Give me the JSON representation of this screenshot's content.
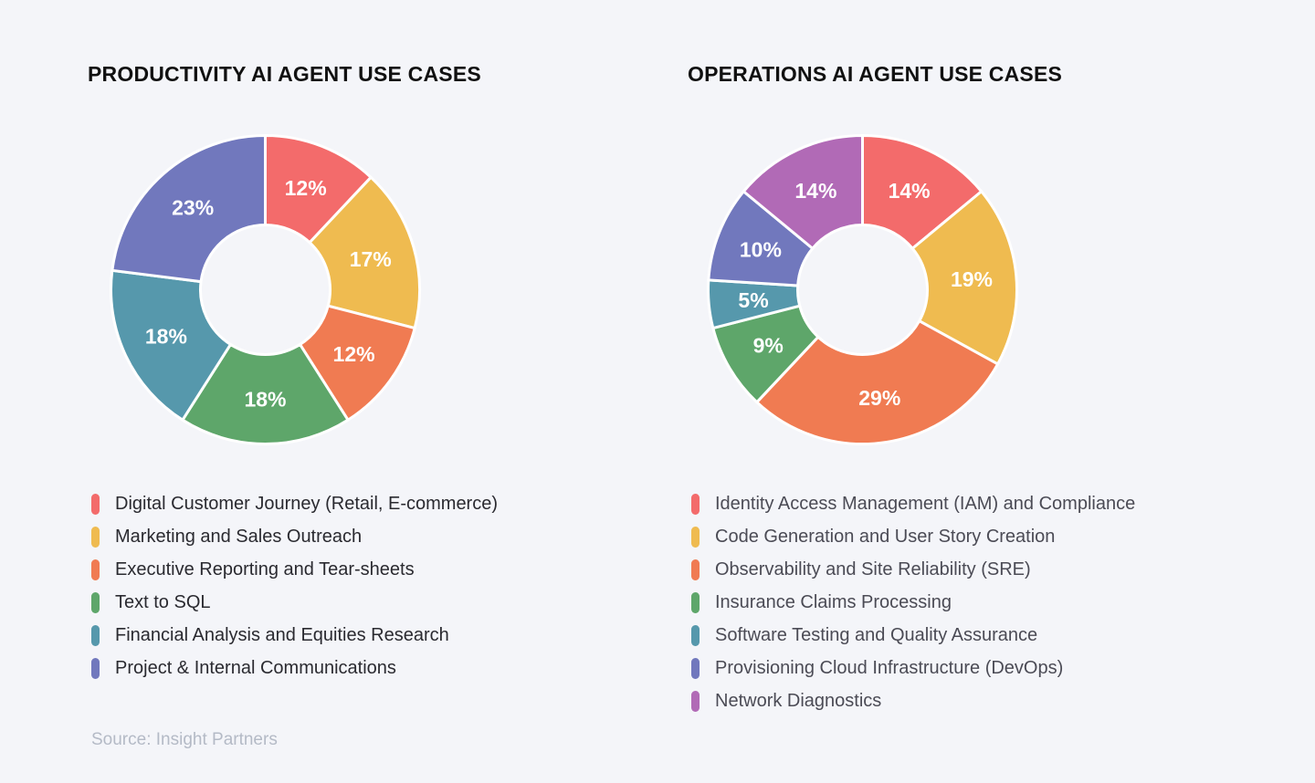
{
  "source": "Source: Insight Partners",
  "chart_data": [
    {
      "type": "pie",
      "title": "PRODUCTIVITY AI AGENT USE CASES",
      "categories": [
        "Digital Customer Journey (Retail, E-commerce)",
        "Marketing and Sales Outreach",
        "Executive Reporting and Tear-sheets",
        "Text to SQL",
        "Financial Analysis and Equities Research",
        "Project & Internal Communications"
      ],
      "values": [
        12,
        17,
        12,
        18,
        18,
        23
      ],
      "value_labels": [
        "12%",
        "17%",
        "12%",
        "18%",
        "18%",
        "23%"
      ],
      "colors": [
        "#f36b6b",
        "#efbb50",
        "#f07b52",
        "#5ea66a",
        "#5698ac",
        "#7178bd"
      ],
      "legend_position": "bottom"
    },
    {
      "type": "pie",
      "title": "OPERATIONS AI AGENT USE CASES",
      "categories": [
        "Identity Access Management (IAM) and Compliance",
        "Code Generation and User Story Creation",
        "Observability and Site Reliability (SRE)",
        "Insurance Claims Processing",
        "Software Testing and Quality Assurance",
        "Provisioning Cloud Infrastructure (DevOps)",
        "Network Diagnostics"
      ],
      "values": [
        14,
        19,
        29,
        9,
        5,
        10,
        14
      ],
      "value_labels": [
        "14%",
        "19%",
        "29%",
        "9%",
        "5%",
        "10%",
        "14%"
      ],
      "colors": [
        "#f36b6b",
        "#efbb50",
        "#f07b52",
        "#5ea66a",
        "#5698ac",
        "#7178bd",
        "#b16ab6"
      ],
      "legend_position": "bottom"
    }
  ]
}
